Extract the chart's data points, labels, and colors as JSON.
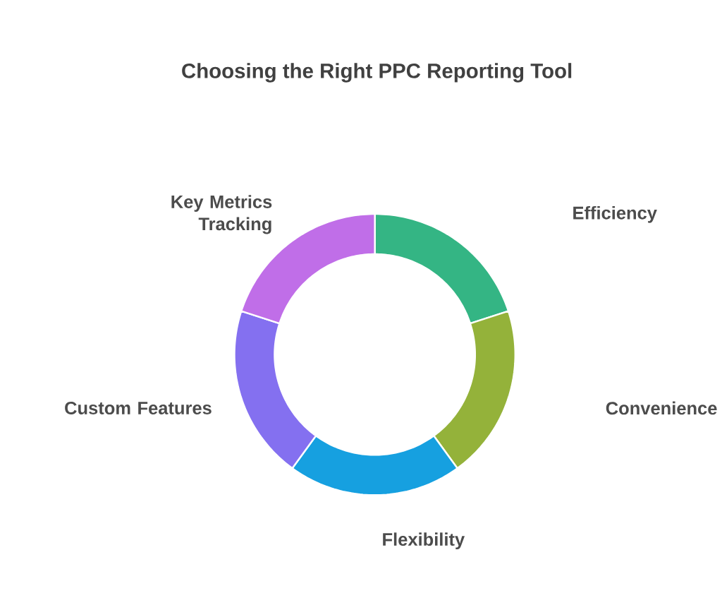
{
  "chart_data": {
    "type": "donut",
    "title": "Choosing the Right PPC Reporting Tool",
    "categories": [
      "Efficiency",
      "Convenience",
      "Flexibility",
      "Custom Features",
      "Key Metrics Tracking"
    ],
    "values": [
      20,
      20,
      20,
      20,
      20
    ],
    "colors": [
      "#34b584",
      "#94b23a",
      "#16a0e0",
      "#8470f0",
      "#c06ee8"
    ]
  }
}
